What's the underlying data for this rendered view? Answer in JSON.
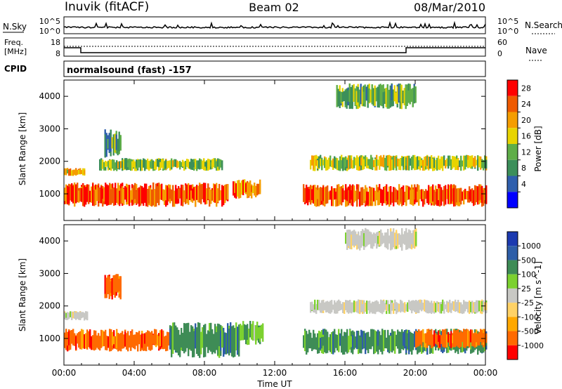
{
  "header": {
    "station": "Inuvik (fitACF)",
    "beam": "Beam 02",
    "date": "08/Mar/2010"
  },
  "noise_panel": {
    "left_label": "N.Sky",
    "left_ticks": [
      "10^5",
      "10^0"
    ],
    "right_label": "N.Search",
    "right_ticks": [
      "10^5",
      "10^0"
    ]
  },
  "freq_panel": {
    "left_label_1": "Freq.",
    "left_label_2": "[MHz]",
    "left_ticks": [
      "18",
      "8"
    ],
    "right_label": "Nave",
    "right_ticks": [
      "60",
      "0"
    ]
  },
  "cpid_panel": {
    "label": "CPID",
    "text": "normalsound (fast) -157"
  },
  "x_axis_title": "Time UT",
  "colors": {
    "power": [
      "#0000ff",
      "#2f5fad",
      "#3c8f5a",
      "#5fae48",
      "#e8d400",
      "#f59d00",
      "#ef5a00",
      "#ff0000"
    ],
    "velocity": [
      "#ff0000",
      "#ff6a00",
      "#ffa800",
      "#ffd266",
      "#c8c8c4",
      "#7cd12f",
      "#3e8c56",
      "#2e5ea8",
      "#1c3ab0"
    ]
  },
  "chart_data": [
    {
      "type": "heatmap",
      "name": "power",
      "ylabel": "Slant Range [km]",
      "xlabel": "",
      "x_ticks": [
        "00:00",
        "04:00",
        "08:00",
        "12:00",
        "16:00",
        "20:00",
        "00:00"
      ],
      "xlim_hours": [
        0,
        24
      ],
      "y_ticks": [
        1000,
        2000,
        3000,
        4000
      ],
      "ylim": [
        180,
        4500
      ],
      "colorbar": {
        "label": "Power [dB]",
        "ticks": [
          "28",
          "24",
          "20",
          "16",
          "12",
          "8",
          "4"
        ],
        "range": [
          0,
          32
        ]
      },
      "bands": [
        {
          "t0": 0.0,
          "t1": 9.3,
          "r0": 600,
          "r1": 1350,
          "level": 28
        },
        {
          "t0": 9.6,
          "t1": 11.2,
          "r0": 850,
          "r1": 1450,
          "level": 26
        },
        {
          "t0": 13.6,
          "t1": 24.0,
          "r0": 600,
          "r1": 1300,
          "level": 28
        },
        {
          "t0": 0.0,
          "t1": 1.2,
          "r0": 1550,
          "r1": 1800,
          "level": 22
        },
        {
          "t0": 2.0,
          "t1": 9.0,
          "r0": 1700,
          "r1": 2100,
          "level": 14
        },
        {
          "t0": 14.0,
          "t1": 24.0,
          "r0": 1700,
          "r1": 2200,
          "level": 16
        },
        {
          "t0": 2.3,
          "t1": 3.2,
          "r0": 2100,
          "r1": 3000,
          "level": 10
        },
        {
          "t0": 15.5,
          "t1": 20.0,
          "r0": 3600,
          "r1": 4400,
          "level": 12
        }
      ]
    },
    {
      "type": "heatmap",
      "name": "velocity",
      "ylabel": "Slant Range [km]",
      "xlabel": "Time UT",
      "x_ticks": [
        "00:00",
        "04:00",
        "08:00",
        "12:00",
        "16:00",
        "20:00",
        "00:00"
      ],
      "xlim_hours": [
        0,
        24
      ],
      "y_ticks": [
        1000,
        2000,
        3000,
        4000
      ],
      "ylim": [
        180,
        4500
      ],
      "colorbar": {
        "label": "Velocity [m s^-1]",
        "ticks": [
          "1000",
          "500",
          "100",
          "25",
          "-25",
          "-100",
          "-500",
          "-1000"
        ]
      },
      "bands": [
        {
          "t0": 0.0,
          "t1": 6.0,
          "r0": 600,
          "r1": 1300,
          "level": -300
        },
        {
          "t0": 6.0,
          "t1": 10.0,
          "r0": 400,
          "r1": 1500,
          "level": 200
        },
        {
          "t0": 10.0,
          "t1": 11.3,
          "r0": 800,
          "r1": 1550,
          "level": 60
        },
        {
          "t0": 13.6,
          "t1": 24.0,
          "r0": 500,
          "r1": 1300,
          "level": 150
        },
        {
          "t0": 20.0,
          "t1": 24.0,
          "r0": 700,
          "r1": 1300,
          "level": -300
        },
        {
          "t0": 0.0,
          "t1": 1.3,
          "r0": 1550,
          "r1": 1850,
          "level": 0
        },
        {
          "t0": 14.0,
          "t1": 24.0,
          "r0": 1750,
          "r1": 2200,
          "level": 0
        },
        {
          "t0": 2.3,
          "t1": 3.2,
          "r0": 2200,
          "r1": 3000,
          "level": -300
        },
        {
          "t0": 16.0,
          "t1": 20.0,
          "r0": 3700,
          "r1": 4400,
          "level": 0
        }
      ]
    }
  ]
}
